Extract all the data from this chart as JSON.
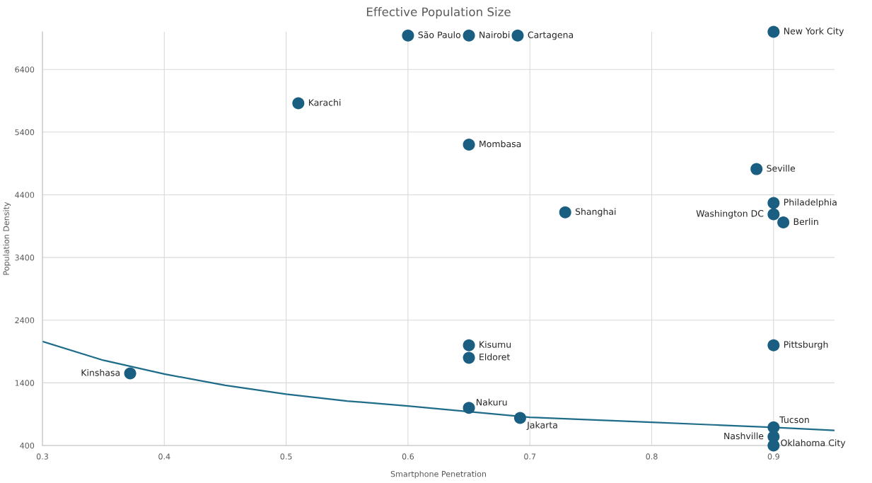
{
  "chart_data": {
    "type": "scatter",
    "title": "Effective Population Size",
    "xlabel": "Smartphone Penetration",
    "ylabel": "Population Density",
    "xlim": [
      0.3,
      0.95
    ],
    "xticks": [
      0.3,
      0.4,
      0.5,
      0.6,
      0.7,
      0.8,
      0.9
    ],
    "ylim": [
      400,
      7000
    ],
    "yticks": [
      400,
      1400,
      2400,
      3400,
      4400,
      5400,
      6400
    ],
    "grid": true,
    "series": [
      {
        "marker": "circle",
        "color": "#1a5f82",
        "x": [
          0.6,
          0.65,
          0.69,
          0.9,
          0.51,
          0.65,
          0.886,
          0.9,
          0.729,
          0.9,
          0.908,
          0.65,
          0.9,
          0.65,
          0.372,
          0.65,
          0.692,
          0.9,
          0.9,
          0.9
        ],
        "values": [
          6940,
          6940,
          6940,
          7000,
          5860,
          5200,
          4810,
          4270,
          4120,
          4090,
          3960,
          2000,
          2000,
          1800,
          1550,
          1000,
          840,
          690,
          540,
          400
        ]
      },
      {
        "type": "line",
        "color": "#1f6b8a",
        "x": [
          0.3,
          0.35,
          0.4,
          0.45,
          0.5,
          0.55,
          0.6,
          0.65,
          0.7,
          0.75,
          0.8,
          0.85,
          0.9,
          0.95
        ],
        "values": [
          2060,
          1760,
          1540,
          1360,
          1220,
          1110,
          1030,
          940,
          850,
          810,
          770,
          730,
          690,
          640
        ]
      }
    ],
    "annotations": [
      {
        "text": "São Paulo",
        "x": 0.6,
        "y": 6940
      },
      {
        "text": "Nairobi",
        "x": 0.65,
        "y": 6940
      },
      {
        "text": "Cartagena",
        "x": 0.69,
        "y": 6940
      },
      {
        "text": "New York City",
        "x": 0.9,
        "y": 7000
      },
      {
        "text": "Karachi",
        "x": 0.51,
        "y": 5860
      },
      {
        "text": "Mombasa",
        "x": 0.65,
        "y": 5200
      },
      {
        "text": "Seville",
        "x": 0.886,
        "y": 4810
      },
      {
        "text": "Philadelphia",
        "x": 0.9,
        "y": 4270
      },
      {
        "text": "Shanghai",
        "x": 0.729,
        "y": 4120
      },
      {
        "text": "Washington DC",
        "x": 0.9,
        "y": 4090
      },
      {
        "text": "Berlin",
        "x": 0.908,
        "y": 3960
      },
      {
        "text": "Kisumu",
        "x": 0.65,
        "y": 2000
      },
      {
        "text": "Pittsburgh",
        "x": 0.9,
        "y": 2000
      },
      {
        "text": "Eldoret",
        "x": 0.65,
        "y": 1800
      },
      {
        "text": "Kinshasa",
        "x": 0.372,
        "y": 1550
      },
      {
        "text": "Nakuru",
        "x": 0.65,
        "y": 1000
      },
      {
        "text": "Jakarta",
        "x": 0.692,
        "y": 840
      },
      {
        "text": "Tucson",
        "x": 0.9,
        "y": 690
      },
      {
        "text": "Nashville",
        "x": 0.9,
        "y": 540
      },
      {
        "text": "Oklahoma City",
        "x": 0.9,
        "y": 400
      }
    ]
  }
}
